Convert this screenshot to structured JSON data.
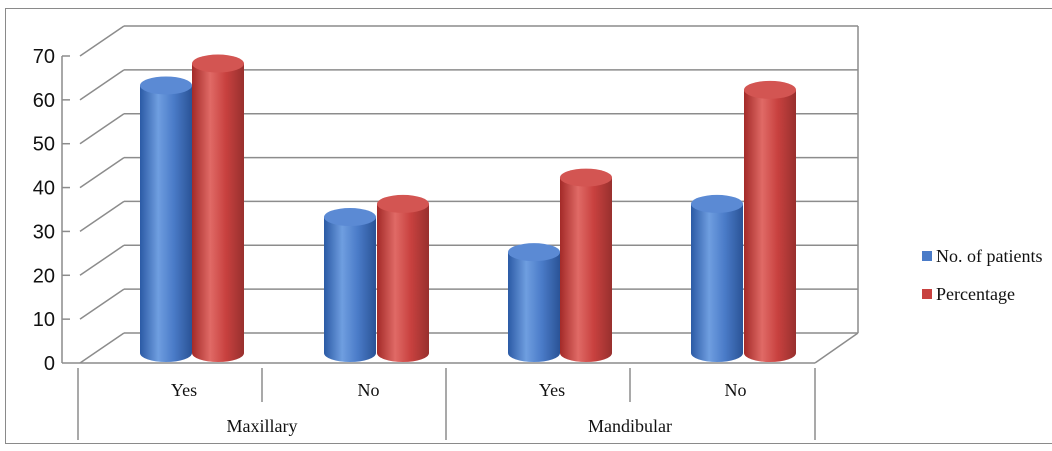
{
  "chart_data": {
    "type": "bar",
    "style": "3d-cylinder",
    "groups": [
      {
        "label": "Maxillary",
        "categories": [
          "Yes",
          "No"
        ]
      },
      {
        "label": "Mandibular",
        "categories": [
          "Yes",
          "No"
        ]
      }
    ],
    "categories": [
      "Yes",
      "No",
      "Yes",
      "No"
    ],
    "series": [
      {
        "name": "No. of patients",
        "color": "#4a7bc8",
        "values": [
          61,
          31,
          23,
          34
        ]
      },
      {
        "name": "Percentage",
        "color": "#c8413f",
        "values": [
          66,
          34,
          40,
          60
        ]
      }
    ],
    "yticks": [
      "0",
      "10",
      "20",
      "30",
      "40",
      "50",
      "60",
      "70"
    ],
    "ylim": [
      0,
      70
    ],
    "grid": true,
    "legend_position": "right"
  }
}
